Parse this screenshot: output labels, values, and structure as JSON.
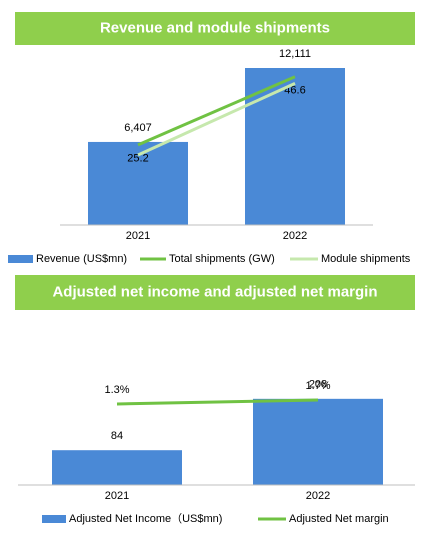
{
  "chart_data": [
    {
      "type": "bar",
      "title": "Revenue and module shipments",
      "categories": [
        "2021",
        "2022"
      ],
      "ylim": [
        0,
        13500
      ],
      "y2lim": [
        0,
        55
      ],
      "series": [
        {
          "name": "Revenue (US$mn)",
          "color": "#4a89d6",
          "values": [
            6407,
            12111
          ],
          "value_labels": [
            "6,407",
            "12,111"
          ]
        },
        {
          "name": "Total shipments (GW)",
          "color": "#70c243",
          "axis": "y2",
          "values": [
            25.2,
            46.6
          ]
        },
        {
          "name": "Module shipments",
          "color": "#c6e8ad",
          "axis": "y2",
          "values": [
            22.0,
            44.5
          ]
        }
      ]
    },
    {
      "type": "bar",
      "title": "Adjusted net income and adjusted net margin",
      "categories": [
        "2021",
        "2022"
      ],
      "ylim": [
        0,
        350
      ],
      "y2lim": [
        -6.8,
        7.7
      ],
      "series": [
        {
          "name": "Adjusted Net Income（US$mn)",
          "color": "#4a89d6",
          "values": [
            84,
            208
          ]
        },
        {
          "name": "Adjusted Net margin",
          "color": "#70c243",
          "axis": "y2",
          "values": [
            1.3,
            1.7
          ],
          "value_labels": [
            "1.3%",
            "1.7%"
          ]
        }
      ]
    }
  ]
}
